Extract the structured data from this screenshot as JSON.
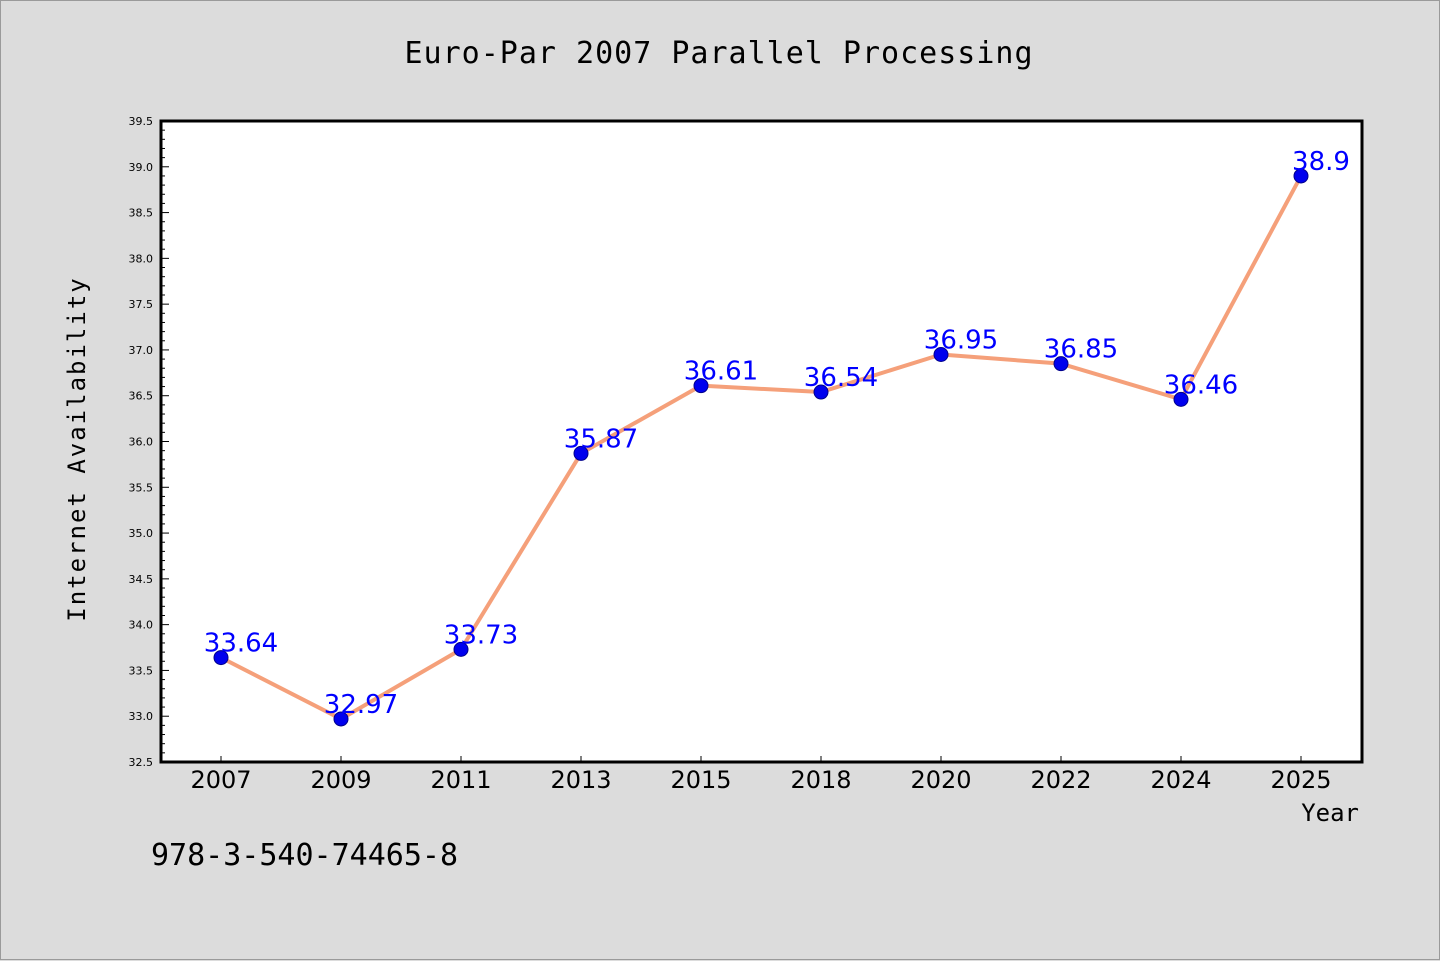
{
  "chart_data": {
    "type": "line",
    "title": "Euro-Par 2007 Parallel Processing",
    "xlabel": "Year",
    "ylabel": "Internet Availability",
    "categories": [
      "2007",
      "2009",
      "2011",
      "2013",
      "2015",
      "2018",
      "2020",
      "2022",
      "2024",
      "2025"
    ],
    "series": [
      {
        "values": [
          33.64,
          32.97,
          33.73,
          35.87,
          36.61,
          36.54,
          36.95,
          36.85,
          36.46,
          38.9
        ],
        "data_labels": [
          "33.64",
          "32.97",
          "33.73",
          "35.87",
          "36.61",
          "36.54",
          "36.95",
          "36.85",
          "36.46",
          "38.9"
        ],
        "line_color": "#f5a07a",
        "marker_color": "#0000ee"
      }
    ],
    "ylim": [
      32.5,
      39.5
    ],
    "yticks": [
      "32.5",
      "33.0",
      "33.5",
      "34.0",
      "34.5",
      "35.0",
      "35.5",
      "36.0",
      "36.5",
      "37.0",
      "37.5",
      "38.0",
      "38.5",
      "39.0",
      "39.5"
    ],
    "grid": false,
    "legend": "none",
    "data_label_color": "#0000ff",
    "background_color": "#dcdcdc",
    "plot_background": "#ffffff"
  },
  "footer_text": "978-3-540-74465-8"
}
